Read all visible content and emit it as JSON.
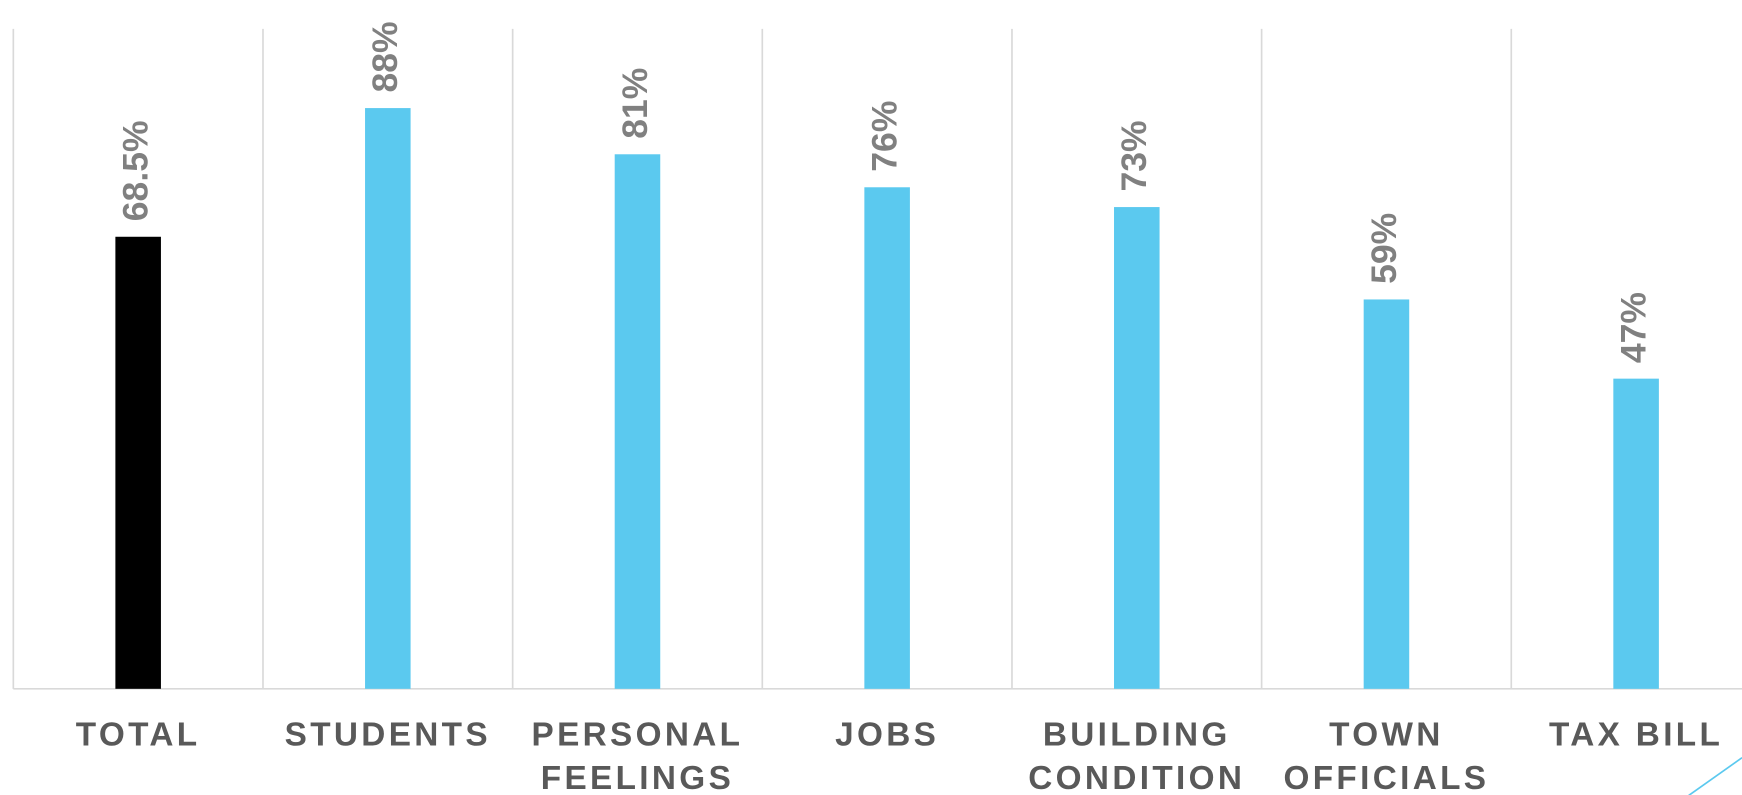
{
  "chart_data": {
    "type": "bar",
    "categories": [
      "TOTAL",
      "STUDENTS",
      "PERSONAL FEELINGS",
      "JOBS",
      "BUILDING CONDITION",
      "TOWN OFFICIALS",
      "TAX BILL"
    ],
    "values": [
      68.5,
      88,
      81,
      76,
      73,
      59,
      47
    ],
    "value_labels": [
      "68.5%",
      "88%",
      "81%",
      "76%",
      "73%",
      "59%",
      "47%"
    ],
    "colors": [
      "#000000",
      "#5bc9ef",
      "#5bc9ef",
      "#5bc9ef",
      "#5bc9ef",
      "#5bc9ef",
      "#5bc9ef"
    ],
    "ylim": [
      0,
      100
    ]
  }
}
